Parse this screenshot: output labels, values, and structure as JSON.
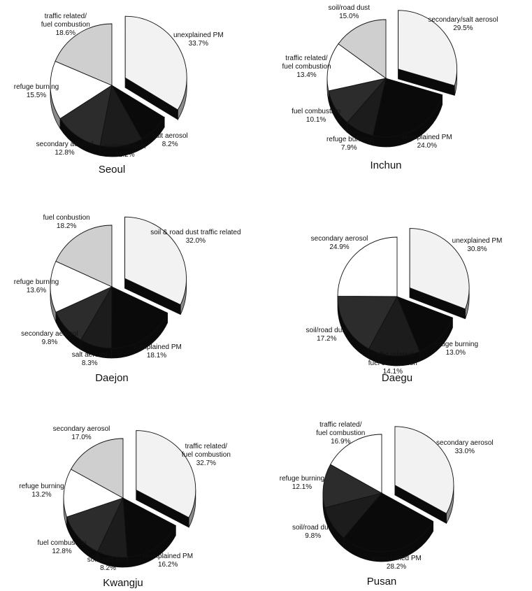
{
  "chart_data": [
    {
      "type": "pie",
      "title": "Seoul",
      "slices": [
        {
          "label": "unexplained PM",
          "value": 33.7,
          "exploded": true
        },
        {
          "label": "salt aerosol",
          "value": 8.2
        },
        {
          "label": "soil/road dust",
          "value": 11.2
        },
        {
          "label": "secondary aerosol",
          "value": 12.8
        },
        {
          "label": "refuge burning",
          "value": 15.5
        },
        {
          "label": "traffic related/\nfuel combustion",
          "value": 18.6
        }
      ]
    },
    {
      "type": "pie",
      "title": "Inchun",
      "slices": [
        {
          "label": "secondary/salt aerosol",
          "value": 29.5,
          "exploded": true
        },
        {
          "label": "unexplained PM",
          "value": 24.0
        },
        {
          "label": "refuge burning",
          "value": 7.9
        },
        {
          "label": "fuel combustion",
          "value": 10.1
        },
        {
          "label": "traffic related/\nfuel combustion",
          "value": 13.4
        },
        {
          "label": "soil/road dust",
          "value": 15.0
        }
      ]
    },
    {
      "type": "pie",
      "title": "Daejon",
      "slices": [
        {
          "label": "soil & road dust traffic related",
          "value": 32.0,
          "exploded": true
        },
        {
          "label": "unexplained PM",
          "value": 18.1
        },
        {
          "label": "salt aerosol",
          "value": 8.3
        },
        {
          "label": "secondary aerosol",
          "value": 9.8
        },
        {
          "label": "refuge burning",
          "value": 13.6
        },
        {
          "label": "fuel conbustion",
          "value": 18.2
        }
      ]
    },
    {
      "type": "pie",
      "title": "Daegu",
      "slices": [
        {
          "label": "unexplained PM",
          "value": 30.8,
          "exploded": true
        },
        {
          "label": "refuge burning",
          "value": 13.0
        },
        {
          "label": "traffic related/\nfuel combustion",
          "value": 14.1
        },
        {
          "label": "soil/road dust",
          "value": 17.2
        },
        {
          "label": "secondary aerosol",
          "value": 24.9
        }
      ]
    },
    {
      "type": "pie",
      "title": "Kwangju",
      "slices": [
        {
          "label": "traffic related/\nfuel combustion",
          "value": 32.7,
          "exploded": true
        },
        {
          "label": "unexplained PM",
          "value": 16.2
        },
        {
          "label": "soil/road dust",
          "value": 8.2
        },
        {
          "label": "fuel combustion",
          "value": 12.8
        },
        {
          "label": "refuge burning",
          "value": 13.2
        },
        {
          "label": "secondary aerosol",
          "value": 17.0
        }
      ]
    },
    {
      "type": "pie",
      "title": "Pusan",
      "slices": [
        {
          "label": "secondary aerosol",
          "value": 33.0,
          "exploded": true
        },
        {
          "label": "unexplained PM",
          "value": 28.2
        },
        {
          "label": "soil/road dust",
          "value": 9.8
        },
        {
          "label": "refuge burning",
          "value": 12.1
        },
        {
          "label": "traffic related/\nfuel combustion",
          "value": 16.9
        }
      ]
    }
  ],
  "colors": {
    "slice_fills": [
      "#f2f2f2",
      "#0a0a0a",
      "#1c1c1c",
      "#2c2c2c",
      "#ffffff",
      "#cfcfcf"
    ],
    "side_dark": "#0a0a0a",
    "side_light": "#8a8a8a",
    "stroke": "#111111"
  }
}
